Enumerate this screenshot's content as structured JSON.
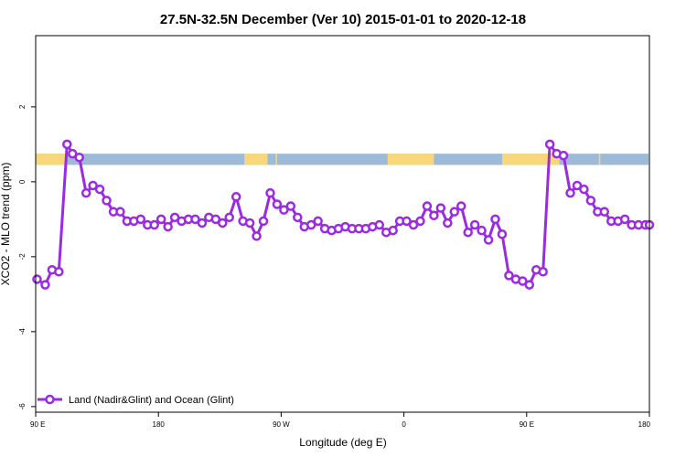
{
  "chart_data": {
    "type": "line",
    "title": "27.5N-32.5N December (Ver 10)   2015-01-01 to 2020-12-18",
    "xlabel": "Longitude (deg E)",
    "ylabel": "XCO2 - MLO trend (ppm)",
    "xlim": [
      90,
      540
    ],
    "ylim": [
      -6.15,
      3.9
    ],
    "x_ticks": [
      {
        "value": 90,
        "label": "90 E"
      },
      {
        "value": 180,
        "label": "180"
      },
      {
        "value": 270,
        "label": "90 W"
      },
      {
        "value": 360,
        "label": "0"
      },
      {
        "value": 450,
        "label": "90 E"
      },
      {
        "value": 540,
        "label": "180"
      }
    ],
    "y_ticks": [
      {
        "value": 2,
        "label": "2"
      },
      {
        "value": 0,
        "label": "0"
      },
      {
        "value": -2,
        "label": "-2"
      },
      {
        "value": -4,
        "label": "-4"
      },
      {
        "value": -6,
        "label": "-6"
      }
    ],
    "grid": false,
    "legend_position": "bottom-left",
    "surface_band": {
      "y_range": [
        0.45,
        0.75
      ],
      "ocean_color": "#9dbad8",
      "land_color": "#f8d77a",
      "land_x_ranges": [
        [
          90,
          112
        ],
        [
          243,
          260
        ],
        [
          266,
          267
        ],
        [
          348,
          382
        ],
        [
          432,
          474
        ],
        [
          503,
          504
        ]
      ]
    },
    "series": [
      {
        "name": "Land (Nadir&Glint) and Ocean (Glint)",
        "color": "#9a2be2",
        "x": [
          91,
          97,
          102,
          107,
          113,
          117,
          122,
          127,
          132,
          137,
          142,
          147,
          152,
          157,
          162,
          167,
          172,
          177,
          182,
          187,
          192,
          197,
          202,
          207,
          212,
          217,
          222,
          227,
          232,
          237,
          242,
          247,
          252,
          257,
          262,
          267,
          272,
          277,
          282,
          287,
          292,
          297,
          302,
          307,
          312,
          317,
          322,
          327,
          332,
          337,
          342,
          347,
          352,
          357,
          362,
          367,
          372,
          377,
          382,
          387,
          392,
          397,
          402,
          407,
          412,
          417,
          422,
          427,
          432,
          437,
          442,
          447,
          452,
          457,
          462,
          467,
          472,
          477,
          482,
          487,
          492,
          497,
          502,
          507,
          512,
          517,
          522,
          527,
          532,
          537,
          540
        ],
        "values": [
          -2.6,
          -2.75,
          -2.35,
          -2.4,
          1.0,
          0.75,
          0.65,
          -0.3,
          -0.1,
          -0.2,
          -0.5,
          -0.8,
          -0.8,
          -1.05,
          -1.05,
          -1.0,
          -1.15,
          -1.15,
          -1.0,
          -1.2,
          -0.95,
          -1.05,
          -1.0,
          -1.0,
          -1.1,
          -0.95,
          -1.0,
          -1.1,
          -0.95,
          -0.4,
          -1.05,
          -1.1,
          -1.45,
          -1.05,
          -0.3,
          -0.6,
          -0.75,
          -0.65,
          -0.95,
          -1.2,
          -1.15,
          -1.05,
          -1.25,
          -1.3,
          -1.25,
          -1.2,
          -1.25,
          -1.25,
          -1.25,
          -1.2,
          -1.15,
          -1.35,
          -1.3,
          -1.05,
          -1.05,
          -1.15,
          -1.05,
          -0.65,
          -0.9,
          -0.7,
          -1.1,
          -0.8,
          -0.65,
          -1.35,
          -1.15,
          -1.3,
          -1.55,
          -1.0,
          -1.4,
          -2.5,
          -2.6,
          -2.65,
          -2.75,
          -2.35,
          -2.4,
          1.0,
          0.75,
          0.7,
          -0.3,
          -0.1,
          -0.2,
          -0.5,
          -0.8,
          -0.8,
          -1.05,
          -1.05,
          -1.0,
          -1.15,
          -1.15,
          -1.15,
          -1.15
        ]
      }
    ]
  }
}
